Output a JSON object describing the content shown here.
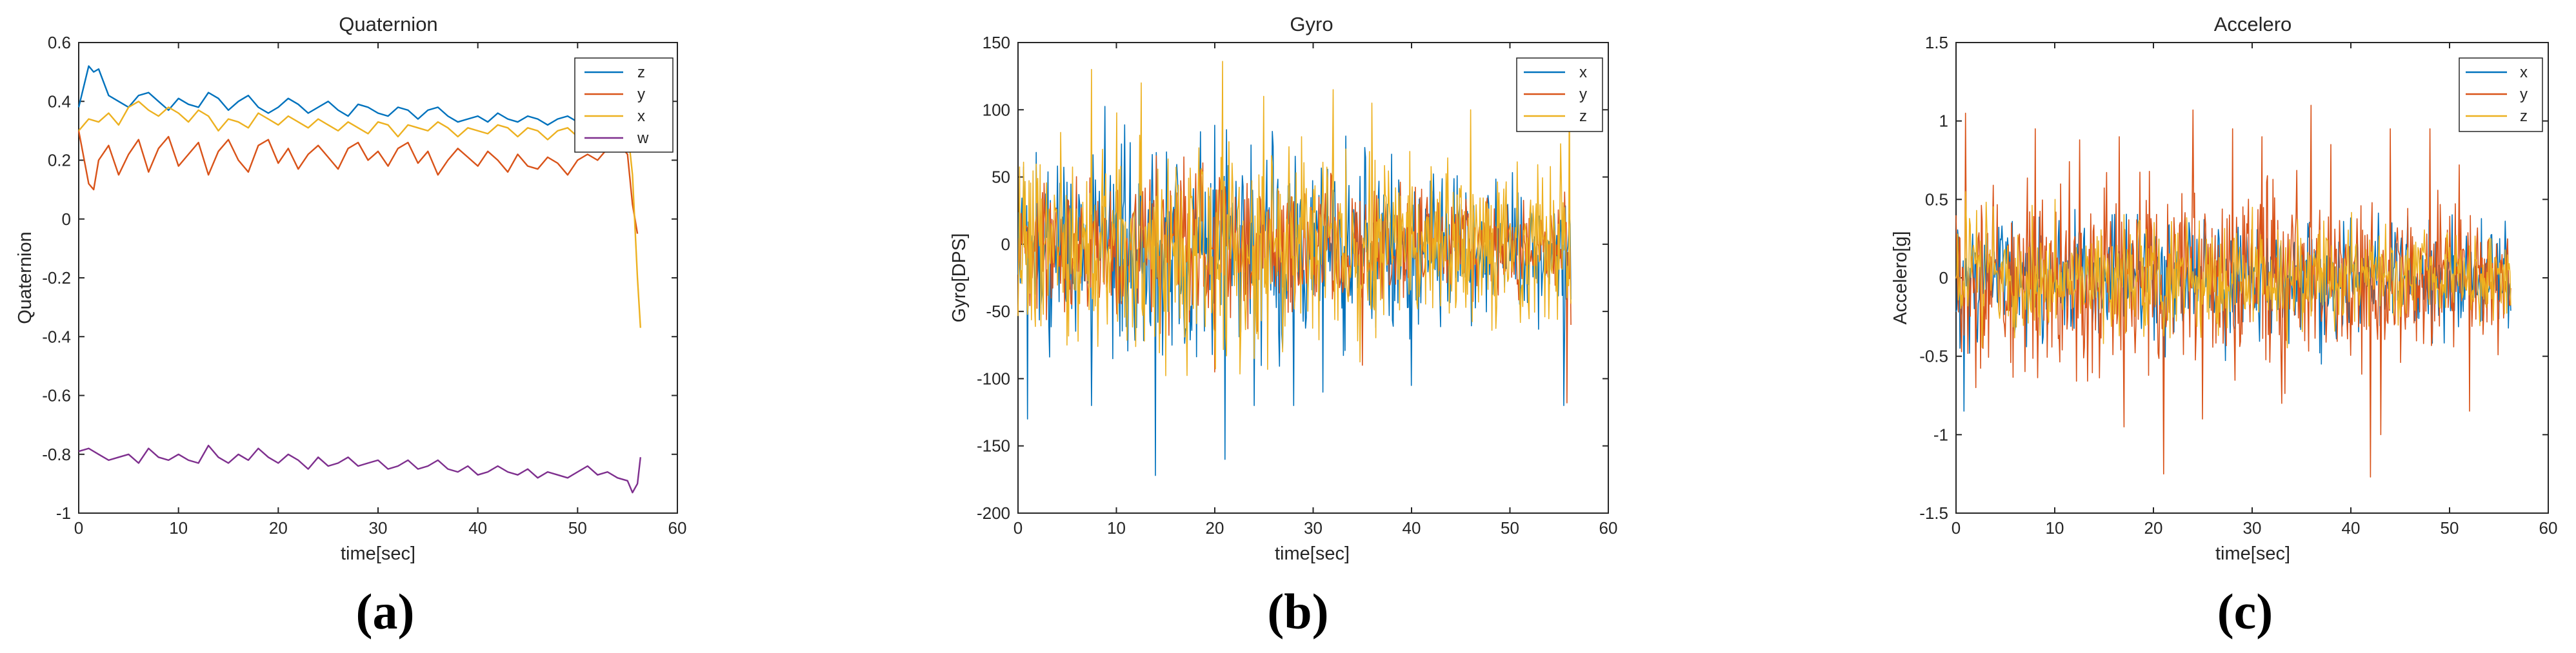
{
  "chart_data": [
    {
      "type": "line",
      "title": "Quaternion",
      "xlabel": "time[sec]",
      "ylabel": "Quaternion",
      "xlim": [
        0,
        60
      ],
      "ylim": [
        -1,
        0.6
      ],
      "xticks": [
        0,
        10,
        20,
        30,
        40,
        50,
        60
      ],
      "xtick_labels": [
        "0",
        "10",
        "20",
        "30",
        "40",
        "50",
        "60"
      ],
      "yticks": [
        -1,
        -0.8,
        -0.6,
        -0.4,
        -0.2,
        0,
        0.2,
        0.4,
        0.6
      ],
      "ytick_labels": [
        "-1",
        "-0.8",
        "-0.6",
        "-0.4",
        "-0.2",
        "0",
        "0.2",
        "0.4",
        "0.6"
      ],
      "legend_position": "top-right",
      "grid": false,
      "panel_label": "(a)",
      "series": [
        {
          "name": "z",
          "color": "#0072BD",
          "x": [
            0,
            1,
            1.5,
            2,
            3,
            4,
            5,
            6,
            7,
            8,
            9,
            10,
            11,
            12,
            13,
            14,
            15,
            16,
            17,
            18,
            19,
            20,
            21,
            22,
            23,
            24,
            25,
            26,
            27,
            28,
            29,
            30,
            31,
            32,
            33,
            34,
            35,
            36,
            37,
            38,
            39,
            40,
            41,
            42,
            43,
            44,
            45,
            46,
            47,
            48,
            49,
            50,
            51,
            52,
            53,
            54,
            55,
            56
          ],
          "values": [
            0.38,
            0.52,
            0.5,
            0.51,
            0.42,
            0.4,
            0.38,
            0.42,
            0.43,
            0.4,
            0.37,
            0.41,
            0.39,
            0.38,
            0.43,
            0.41,
            0.37,
            0.4,
            0.42,
            0.38,
            0.36,
            0.38,
            0.41,
            0.39,
            0.36,
            0.38,
            0.4,
            0.37,
            0.35,
            0.39,
            0.38,
            0.36,
            0.35,
            0.38,
            0.37,
            0.34,
            0.37,
            0.38,
            0.35,
            0.33,
            0.34,
            0.35,
            0.33,
            0.36,
            0.34,
            0.33,
            0.35,
            0.34,
            0.32,
            0.34,
            0.35,
            0.33,
            0.32,
            0.33,
            0.34,
            0.33,
            0.3,
            0.31
          ]
        },
        {
          "name": "y",
          "color": "#D95319",
          "x": [
            0,
            1,
            1.5,
            2,
            3,
            4,
            5,
            6,
            7,
            8,
            9,
            10,
            11,
            12,
            13,
            14,
            15,
            16,
            17,
            18,
            19,
            20,
            21,
            22,
            23,
            24,
            25,
            26,
            27,
            28,
            29,
            30,
            31,
            32,
            33,
            34,
            35,
            36,
            37,
            38,
            39,
            40,
            41,
            42,
            43,
            44,
            45,
            46,
            47,
            48,
            49,
            50,
            51,
            52,
            53,
            54,
            55,
            55.5,
            56
          ],
          "values": [
            0.3,
            0.12,
            0.1,
            0.2,
            0.25,
            0.15,
            0.22,
            0.27,
            0.16,
            0.24,
            0.28,
            0.18,
            0.22,
            0.26,
            0.15,
            0.23,
            0.27,
            0.2,
            0.16,
            0.25,
            0.27,
            0.19,
            0.24,
            0.17,
            0.22,
            0.25,
            0.21,
            0.17,
            0.24,
            0.26,
            0.2,
            0.23,
            0.18,
            0.24,
            0.26,
            0.19,
            0.23,
            0.15,
            0.2,
            0.24,
            0.21,
            0.18,
            0.23,
            0.2,
            0.16,
            0.22,
            0.18,
            0.17,
            0.21,
            0.19,
            0.15,
            0.2,
            0.22,
            0.2,
            0.24,
            0.26,
            0.22,
            0.05,
            -0.05
          ]
        },
        {
          "name": "x",
          "color": "#EDB120",
          "x": [
            0,
            1,
            2,
            3,
            4,
            5,
            6,
            7,
            8,
            9,
            10,
            11,
            12,
            13,
            14,
            15,
            16,
            17,
            18,
            19,
            20,
            21,
            22,
            23,
            24,
            25,
            26,
            27,
            28,
            29,
            30,
            31,
            32,
            33,
            34,
            35,
            36,
            37,
            38,
            39,
            40,
            41,
            42,
            43,
            44,
            45,
            46,
            47,
            48,
            49,
            50,
            51,
            52,
            53,
            54,
            55,
            55.5,
            56,
            56.3
          ],
          "values": [
            0.3,
            0.34,
            0.33,
            0.36,
            0.32,
            0.38,
            0.4,
            0.37,
            0.35,
            0.38,
            0.36,
            0.33,
            0.37,
            0.35,
            0.3,
            0.34,
            0.33,
            0.31,
            0.36,
            0.34,
            0.32,
            0.35,
            0.33,
            0.31,
            0.34,
            0.32,
            0.3,
            0.33,
            0.31,
            0.29,
            0.33,
            0.32,
            0.28,
            0.32,
            0.31,
            0.3,
            0.33,
            0.31,
            0.28,
            0.31,
            0.3,
            0.29,
            0.32,
            0.31,
            0.28,
            0.31,
            0.3,
            0.27,
            0.3,
            0.31,
            0.28,
            0.3,
            0.31,
            0.29,
            0.32,
            0.31,
            0.15,
            -0.2,
            -0.37
          ]
        },
        {
          "name": "w",
          "color": "#7E2F8E",
          "x": [
            0,
            1,
            2,
            3,
            4,
            5,
            6,
            7,
            8,
            9,
            10,
            11,
            12,
            13,
            14,
            15,
            16,
            17,
            18,
            19,
            20,
            21,
            22,
            23,
            24,
            25,
            26,
            27,
            28,
            29,
            30,
            31,
            32,
            33,
            34,
            35,
            36,
            37,
            38,
            39,
            40,
            41,
            42,
            43,
            44,
            45,
            46,
            47,
            48,
            49,
            50,
            51,
            52,
            53,
            54,
            55,
            55.5,
            56,
            56.3
          ],
          "values": [
            -0.79,
            -0.78,
            -0.8,
            -0.82,
            -0.81,
            -0.8,
            -0.83,
            -0.78,
            -0.81,
            -0.82,
            -0.8,
            -0.82,
            -0.83,
            -0.77,
            -0.81,
            -0.83,
            -0.8,
            -0.82,
            -0.78,
            -0.81,
            -0.83,
            -0.8,
            -0.82,
            -0.85,
            -0.81,
            -0.84,
            -0.83,
            -0.81,
            -0.84,
            -0.83,
            -0.82,
            -0.85,
            -0.84,
            -0.82,
            -0.85,
            -0.84,
            -0.82,
            -0.85,
            -0.86,
            -0.84,
            -0.87,
            -0.86,
            -0.84,
            -0.86,
            -0.87,
            -0.85,
            -0.88,
            -0.86,
            -0.87,
            -0.88,
            -0.86,
            -0.84,
            -0.87,
            -0.86,
            -0.88,
            -0.89,
            -0.93,
            -0.9,
            -0.81
          ]
        }
      ]
    },
    {
      "type": "line",
      "title": "Gyro",
      "xlabel": "time[sec]",
      "ylabel": "Gyro[DPS]",
      "xlim": [
        0,
        60
      ],
      "ylim": [
        -200,
        150
      ],
      "xticks": [
        0,
        10,
        20,
        30,
        40,
        50,
        60
      ],
      "xtick_labels": [
        "0",
        "10",
        "20",
        "30",
        "40",
        "50",
        "60"
      ],
      "yticks": [
        -200,
        -150,
        -100,
        -50,
        0,
        50,
        100,
        150
      ],
      "ytick_labels": [
        "-200",
        "-150",
        "-100",
        "-50",
        "0",
        "50",
        "100",
        "150"
      ],
      "legend_position": "top-right",
      "grid": false,
      "panel_label": "(b)",
      "noise": {
        "n": 700,
        "t_end": 56.2
      },
      "series": [
        {
          "name": "x",
          "color": "#0072BD",
          "amplitude": [
            [
              0,
              60
            ],
            [
              10,
              65
            ],
            [
              20,
              70
            ],
            [
              30,
              55
            ],
            [
              40,
              50
            ],
            [
              50,
              35
            ],
            [
              56,
              40
            ]
          ],
          "peaks": [
            [
              1,
              -130
            ],
            [
              7.5,
              -120
            ],
            [
              14,
              -172
            ],
            [
              21,
              -160
            ],
            [
              24,
              -120
            ],
            [
              28,
              -120
            ],
            [
              31,
              -110
            ],
            [
              40,
              -105
            ],
            [
              55.5,
              -120
            ]
          ]
        },
        {
          "name": "y",
          "color": "#D95319",
          "amplitude": [
            [
              0,
              40
            ],
            [
              10,
              45
            ],
            [
              20,
              50
            ],
            [
              30,
              40
            ],
            [
              40,
              35
            ],
            [
              50,
              25
            ],
            [
              56,
              30
            ]
          ],
          "peaks": [
            [
              20,
              -95
            ],
            [
              35,
              -90
            ],
            [
              55.8,
              -118
            ],
            [
              56.2,
              -60
            ]
          ]
        },
        {
          "name": "z",
          "color": "#EDB120",
          "amplitude": [
            [
              0,
              55
            ],
            [
              10,
              60
            ],
            [
              20,
              65
            ],
            [
              30,
              55
            ],
            [
              40,
              50
            ],
            [
              50,
              40
            ],
            [
              56,
              45
            ]
          ],
          "peaks": [
            [
              7.5,
              130
            ],
            [
              12.5,
              120
            ],
            [
              20.8,
              136
            ],
            [
              25,
              110
            ],
            [
              32,
              115
            ],
            [
              36,
              105
            ],
            [
              46,
              100
            ],
            [
              56,
              135
            ],
            [
              5,
              -75
            ],
            [
              24,
              -85
            ]
          ]
        }
      ]
    },
    {
      "type": "line",
      "title": "Accelero",
      "xlabel": "time[sec]",
      "ylabel": "Accelero[g]",
      "xlim": [
        0,
        60
      ],
      "ylim": [
        -1.5,
        1.5
      ],
      "xticks": [
        0,
        10,
        20,
        30,
        40,
        50,
        60
      ],
      "xtick_labels": [
        "0",
        "10",
        "20",
        "30",
        "40",
        "50",
        "60"
      ],
      "yticks": [
        -1.5,
        -1,
        -0.5,
        0,
        0.5,
        1,
        1.5
      ],
      "ytick_labels": [
        "-1.5",
        "-1",
        "-0.5",
        "0",
        "0.5",
        "1",
        "1.5"
      ],
      "legend_position": "top-right",
      "grid": false,
      "panel_label": "(c)",
      "noise": {
        "n": 700,
        "t_end": 56.2
      },
      "series": [
        {
          "name": "x",
          "color": "#0072BD",
          "amplitude": [
            [
              0,
              0.35
            ],
            [
              10,
              0.3
            ],
            [
              20,
              0.35
            ],
            [
              30,
              0.3
            ],
            [
              40,
              0.3
            ],
            [
              50,
              0.25
            ],
            [
              56,
              0.25
            ]
          ],
          "peaks": [
            [
              0.8,
              -0.85
            ],
            [
              21,
              -0.6
            ],
            [
              37,
              -0.55
            ]
          ]
        },
        {
          "name": "y",
          "color": "#D95319",
          "amplitude": [
            [
              0,
              0.45
            ],
            [
              10,
              0.45
            ],
            [
              20,
              0.5
            ],
            [
              30,
              0.45
            ],
            [
              40,
              0.45
            ],
            [
              50,
              0.35
            ],
            [
              56,
              0.3
            ]
          ],
          "peaks": [
            [
              1,
              1.05
            ],
            [
              8,
              0.95
            ],
            [
              12.5,
              0.88
            ],
            [
              16.5,
              0.9
            ],
            [
              21,
              1.28
            ],
            [
              24,
              1.07
            ],
            [
              28,
              0.95
            ],
            [
              31,
              0.9
            ],
            [
              36,
              1.1
            ],
            [
              38,
              0.85
            ],
            [
              44,
              0.95
            ],
            [
              48,
              0.95
            ],
            [
              51,
              0.72
            ],
            [
              2,
              -0.7
            ],
            [
              17,
              -0.95
            ],
            [
              21,
              -1.25
            ],
            [
              25,
              -0.9
            ],
            [
              33,
              -0.8
            ],
            [
              42,
              -1.27
            ],
            [
              43,
              -1.0
            ],
            [
              52,
              -0.85
            ]
          ]
        },
        {
          "name": "z",
          "color": "#EDB120",
          "amplitude": [
            [
              0,
              0.3
            ],
            [
              10,
              0.28
            ],
            [
              20,
              0.3
            ],
            [
              30,
              0.28
            ],
            [
              40,
              0.27
            ],
            [
              50,
              0.22
            ],
            [
              56,
              0.22
            ]
          ],
          "peaks": [
            [
              1,
              0.55
            ],
            [
              10,
              0.5
            ],
            [
              30,
              0.45
            ]
          ]
        }
      ]
    }
  ]
}
